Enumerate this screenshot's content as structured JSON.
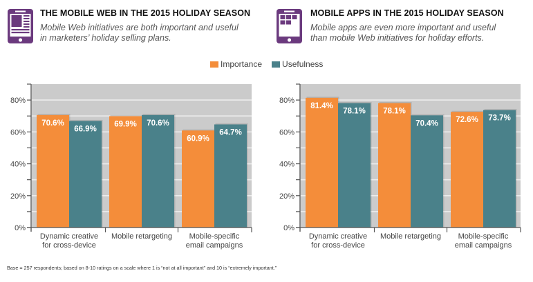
{
  "legend": {
    "items": [
      {
        "label": "Importance",
        "color": "#F48D3A"
      },
      {
        "label": "Usefulness",
        "color": "#4A818A"
      }
    ]
  },
  "colors": {
    "importance": "#F48D3A",
    "usefulness": "#4A818A",
    "plot_background": "#CBCBCB",
    "icon_purple": "#6B3A7E"
  },
  "panels": [
    {
      "icon": "tablet-web-page-icon",
      "title": "THE MOBILE WEB IN THE 2015 HOLIDAY SEASON",
      "subtitle_line1": "Mobile Web initiatives are both important and useful",
      "subtitle_line2": "in marketers’ holiday selling plans."
    },
    {
      "icon": "tablet-app-grid-icon",
      "title": "MOBILE APPS IN THE 2015 HOLIDAY SEASON",
      "subtitle_line1": "Mobile apps are even more important and useful",
      "subtitle_line2": "than mobile Web initiatives for holiday efforts."
    }
  ],
  "chart_data": [
    {
      "type": "bar",
      "title": "THE MOBILE WEB IN THE 2015 HOLIDAY SEASON",
      "categories": [
        [
          "Dynamic creative",
          "for cross-device"
        ],
        [
          "Mobile retargeting"
        ],
        [
          "Mobile-specific",
          "email campaigns"
        ]
      ],
      "series": [
        {
          "name": "Importance",
          "values": [
            70.6,
            69.9,
            60.9
          ],
          "labels": [
            "70.6%",
            "69.9%",
            "60.9%"
          ]
        },
        {
          "name": "Usefulness",
          "values": [
            66.9,
            70.6,
            64.7
          ],
          "labels": [
            "66.9%",
            "70.6%",
            "64.7%"
          ]
        }
      ],
      "xlabel": "",
      "ylabel": "",
      "ylim": [
        0,
        90
      ],
      "yticks": [
        0,
        20,
        40,
        60,
        80
      ],
      "ytick_labels": [
        "0%",
        "20%",
        "40%",
        "60%",
        "80%"
      ],
      "minor_gridlines": [
        10,
        30,
        50,
        70
      ],
      "grid": true,
      "legend": "top-center"
    },
    {
      "type": "bar",
      "title": "MOBILE APPS IN THE 2015 HOLIDAY SEASON",
      "categories": [
        [
          "Dynamic creative",
          "for cross-device"
        ],
        [
          "Mobile retargeting"
        ],
        [
          "Mobile-specific",
          "email campaigns"
        ]
      ],
      "series": [
        {
          "name": "Importance",
          "values": [
            81.4,
            78.1,
            72.6
          ],
          "labels": [
            "81.4%",
            "78.1%",
            "72.6%"
          ]
        },
        {
          "name": "Usefulness",
          "values": [
            78.1,
            70.4,
            73.7
          ],
          "labels": [
            "78.1%",
            "70.4%",
            "73.7%"
          ]
        }
      ],
      "xlabel": "",
      "ylabel": "",
      "ylim": [
        0,
        90
      ],
      "yticks": [
        0,
        20,
        40,
        60,
        80
      ],
      "ytick_labels": [
        "0%",
        "20%",
        "40%",
        "60%",
        "80%"
      ],
      "minor_gridlines": [
        10,
        30,
        50,
        70
      ],
      "grid": true,
      "legend": "top-center"
    }
  ],
  "footnote": "Base = 257 respondents; based on 8-10 ratings on a scale where 1 is “not at all important” and 10 is “extremely important.”"
}
